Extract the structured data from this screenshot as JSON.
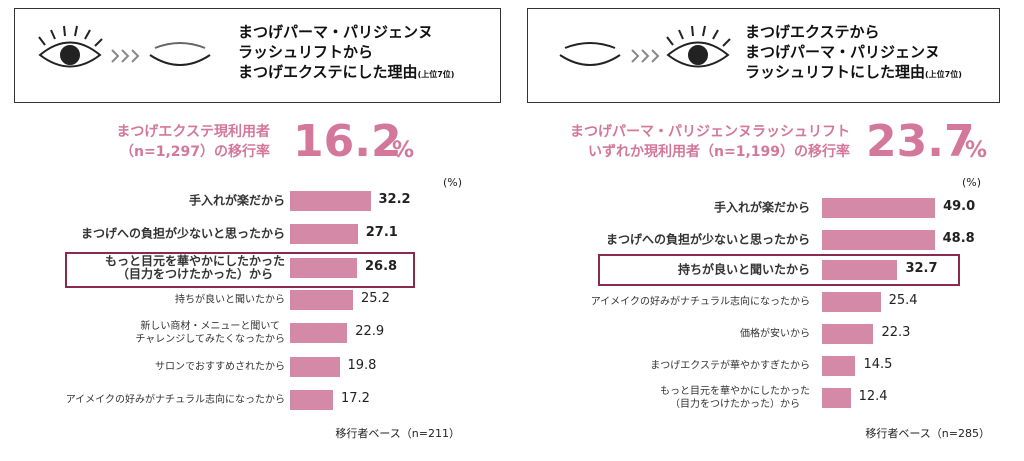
{
  "chart_data": [
    {
      "type": "bar",
      "title": "まつげパーマ・パリジェンヌ\nラッシュリフトから\nまつげエクステにした理由",
      "title_note": "(上位7位)",
      "rate_label": "まつげエクステ現利用者\n（n=1,297）の移行率",
      "rate": 16.2,
      "rate_unit": "%",
      "unit_label": "(%)",
      "base_label": "移行者ベース（n=211）",
      "categories": [
        "手入れが楽だから",
        "まつげへの負担が少ないと思ったから",
        "もっと目元を華やかにしたかった\n（目力をつけたかった）から",
        "持ちが良いと聞いたから",
        "新しい商材・メニューと聞いて\nチャレンジしてみたくなったから",
        "サロンでおすすめされたから",
        "アイメイクの好みがナチュラル志向になったから"
      ],
      "values": [
        32.2,
        27.1,
        26.8,
        25.2,
        22.9,
        19.8,
        17.2
      ],
      "color": "#d48aa6",
      "highlight": 2,
      "bold_count": 3,
      "xlim": [
        0,
        60
      ]
    },
    {
      "type": "bar",
      "title": "まつげエクステから\nまつげパーマ・パリジェンヌ\nラッシュリフトにした理由",
      "title_note": "(上位7位)",
      "rate_label": "まつげパーマ・パリジェンヌラッシュリフト\nいずれか現利用者（n=1,199）の移行率",
      "rate": 23.7,
      "rate_unit": "%",
      "unit_label": "(%)",
      "base_label": "移行者ベース（n=285）",
      "categories": [
        "手入れが楽だから",
        "まつげへの負担が少ないと思ったから",
        "持ちが良いと聞いたから",
        "アイメイクの好みがナチュラル志向になったから",
        "価格が安いから",
        "まつげエクステが華やかすぎたから",
        "もっと目元を華やかにしたかった\n（目力をつけたかった）から"
      ],
      "values": [
        49.0,
        48.8,
        32.7,
        25.4,
        22.3,
        14.5,
        12.4
      ],
      "value_labels": [
        "49.0",
        "48.8",
        "32.7",
        "25.4",
        "22.3",
        "14.5",
        "12.4"
      ],
      "color": "#d48aa6",
      "highlight": 2,
      "bold_count": 3,
      "xlim": [
        0,
        65
      ]
    }
  ]
}
